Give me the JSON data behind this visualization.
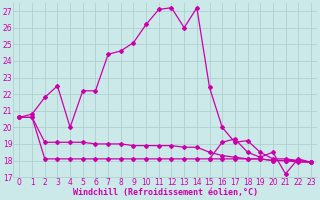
{
  "xlabel": "Windchill (Refroidissement éolien,°C)",
  "background_color": "#cce9e9",
  "grid_color": "#aacccc",
  "line_color": "#cc00aa",
  "xlim": [
    -0.5,
    23.5
  ],
  "ylim": [
    17,
    27.5
  ],
  "xticks": [
    0,
    1,
    2,
    3,
    4,
    5,
    6,
    7,
    8,
    9,
    10,
    11,
    12,
    13,
    14,
    15,
    16,
    17,
    18,
    19,
    20,
    21,
    22,
    23
  ],
  "yticks": [
    17,
    18,
    19,
    20,
    21,
    22,
    23,
    24,
    25,
    26,
    27
  ],
  "series_main": {
    "x": [
      0,
      1,
      2,
      3,
      4,
      5,
      6,
      7,
      8,
      9,
      10,
      11,
      12,
      13,
      14,
      15,
      16,
      17,
      18,
      19,
      20,
      21,
      22,
      23
    ],
    "y": [
      20.6,
      20.8,
      21.8,
      22.5,
      20.0,
      22.2,
      22.2,
      24.4,
      24.6,
      25.1,
      26.2,
      27.1,
      27.2,
      26.0,
      27.2,
      22.4,
      20.0,
      19.1,
      19.2,
      18.5,
      18.1,
      18.1,
      18.0,
      17.9
    ]
  },
  "series_flat1": {
    "x": [
      0,
      1,
      2,
      3,
      4,
      5,
      6,
      7,
      8,
      9,
      10,
      11,
      12,
      13,
      14,
      15,
      16,
      17,
      18,
      19,
      20,
      21,
      22,
      23
    ],
    "y": [
      20.6,
      20.6,
      19.1,
      19.1,
      19.1,
      19.1,
      19.0,
      19.0,
      19.0,
      18.9,
      18.9,
      18.9,
      18.9,
      18.8,
      18.8,
      18.5,
      18.3,
      18.2,
      18.1,
      18.1,
      18.0,
      18.0,
      17.9,
      17.9
    ]
  },
  "series_flat2": {
    "x": [
      0,
      1,
      2,
      3,
      4,
      5,
      6,
      7,
      8,
      9,
      10,
      11,
      12,
      13,
      14,
      15,
      16,
      17,
      18,
      19,
      20,
      21,
      22,
      23
    ],
    "y": [
      20.6,
      20.6,
      18.1,
      18.1,
      18.1,
      18.1,
      18.1,
      18.1,
      18.1,
      18.1,
      18.1,
      18.1,
      18.1,
      18.1,
      18.1,
      18.1,
      18.1,
      18.1,
      18.1,
      18.1,
      18.0,
      18.0,
      18.0,
      17.9
    ]
  },
  "series_wavy": {
    "x": [
      15,
      16,
      17,
      18,
      19,
      20,
      21,
      22,
      23
    ],
    "y": [
      18.1,
      19.1,
      19.3,
      18.5,
      18.2,
      18.5,
      17.2,
      18.1,
      17.9
    ]
  }
}
